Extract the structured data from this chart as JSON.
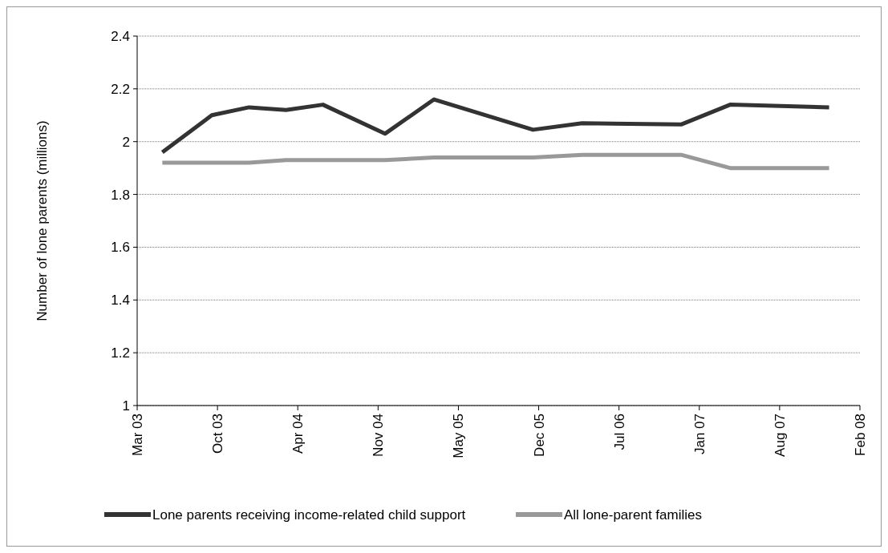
{
  "chart_data": {
    "type": "line",
    "ylabel": "Number of lone parents (millions)",
    "x": [
      "2003-06",
      "2003-10",
      "2004-01",
      "2004-04",
      "2004-07",
      "2004-12",
      "2005-04",
      "2005-12",
      "2006-04",
      "2006-12",
      "2007-04",
      "2007-12"
    ],
    "series": [
      {
        "name": "Lone parents receiving income-related child support",
        "color": "#333333",
        "values": [
          1.96,
          2.1,
          2.13,
          2.12,
          2.14,
          2.03,
          2.16,
          2.045,
          2.07,
          2.065,
          2.14,
          2.13
        ]
      },
      {
        "name": "All lone-parent families",
        "color": "#999999",
        "values": [
          1.92,
          1.92,
          1.92,
          1.93,
          1.93,
          1.93,
          1.94,
          1.94,
          1.95,
          1.95,
          1.9,
          1.9
        ]
      }
    ],
    "xlim": [
      "2003-03-31",
      "2008-02-15"
    ],
    "xticks": [
      {
        "value": "2003-03-31",
        "label": "Mar 03"
      },
      {
        "value": "2003-10-15",
        "label": "Oct 03"
      },
      {
        "value": "2004-04-30",
        "label": "Apr 04"
      },
      {
        "value": "2004-11-14",
        "label": "Nov 04"
      },
      {
        "value": "2005-05-31",
        "label": "May 05"
      },
      {
        "value": "2005-12-15",
        "label": "Dec 05"
      },
      {
        "value": "2006-07-01",
        "label": "Jul 06"
      },
      {
        "value": "2007-01-15",
        "label": "Jan 07"
      },
      {
        "value": "2007-08-01",
        "label": "Aug 07"
      },
      {
        "value": "2008-02-15",
        "label": "Feb 08"
      }
    ],
    "ylim": [
      1,
      2.4
    ],
    "yticks": [
      1,
      1.2,
      1.4,
      1.6,
      1.8,
      2,
      2.2,
      2.4
    ],
    "grid": "y",
    "legend": "bottom",
    "marker": "none",
    "line_style": "solid"
  }
}
